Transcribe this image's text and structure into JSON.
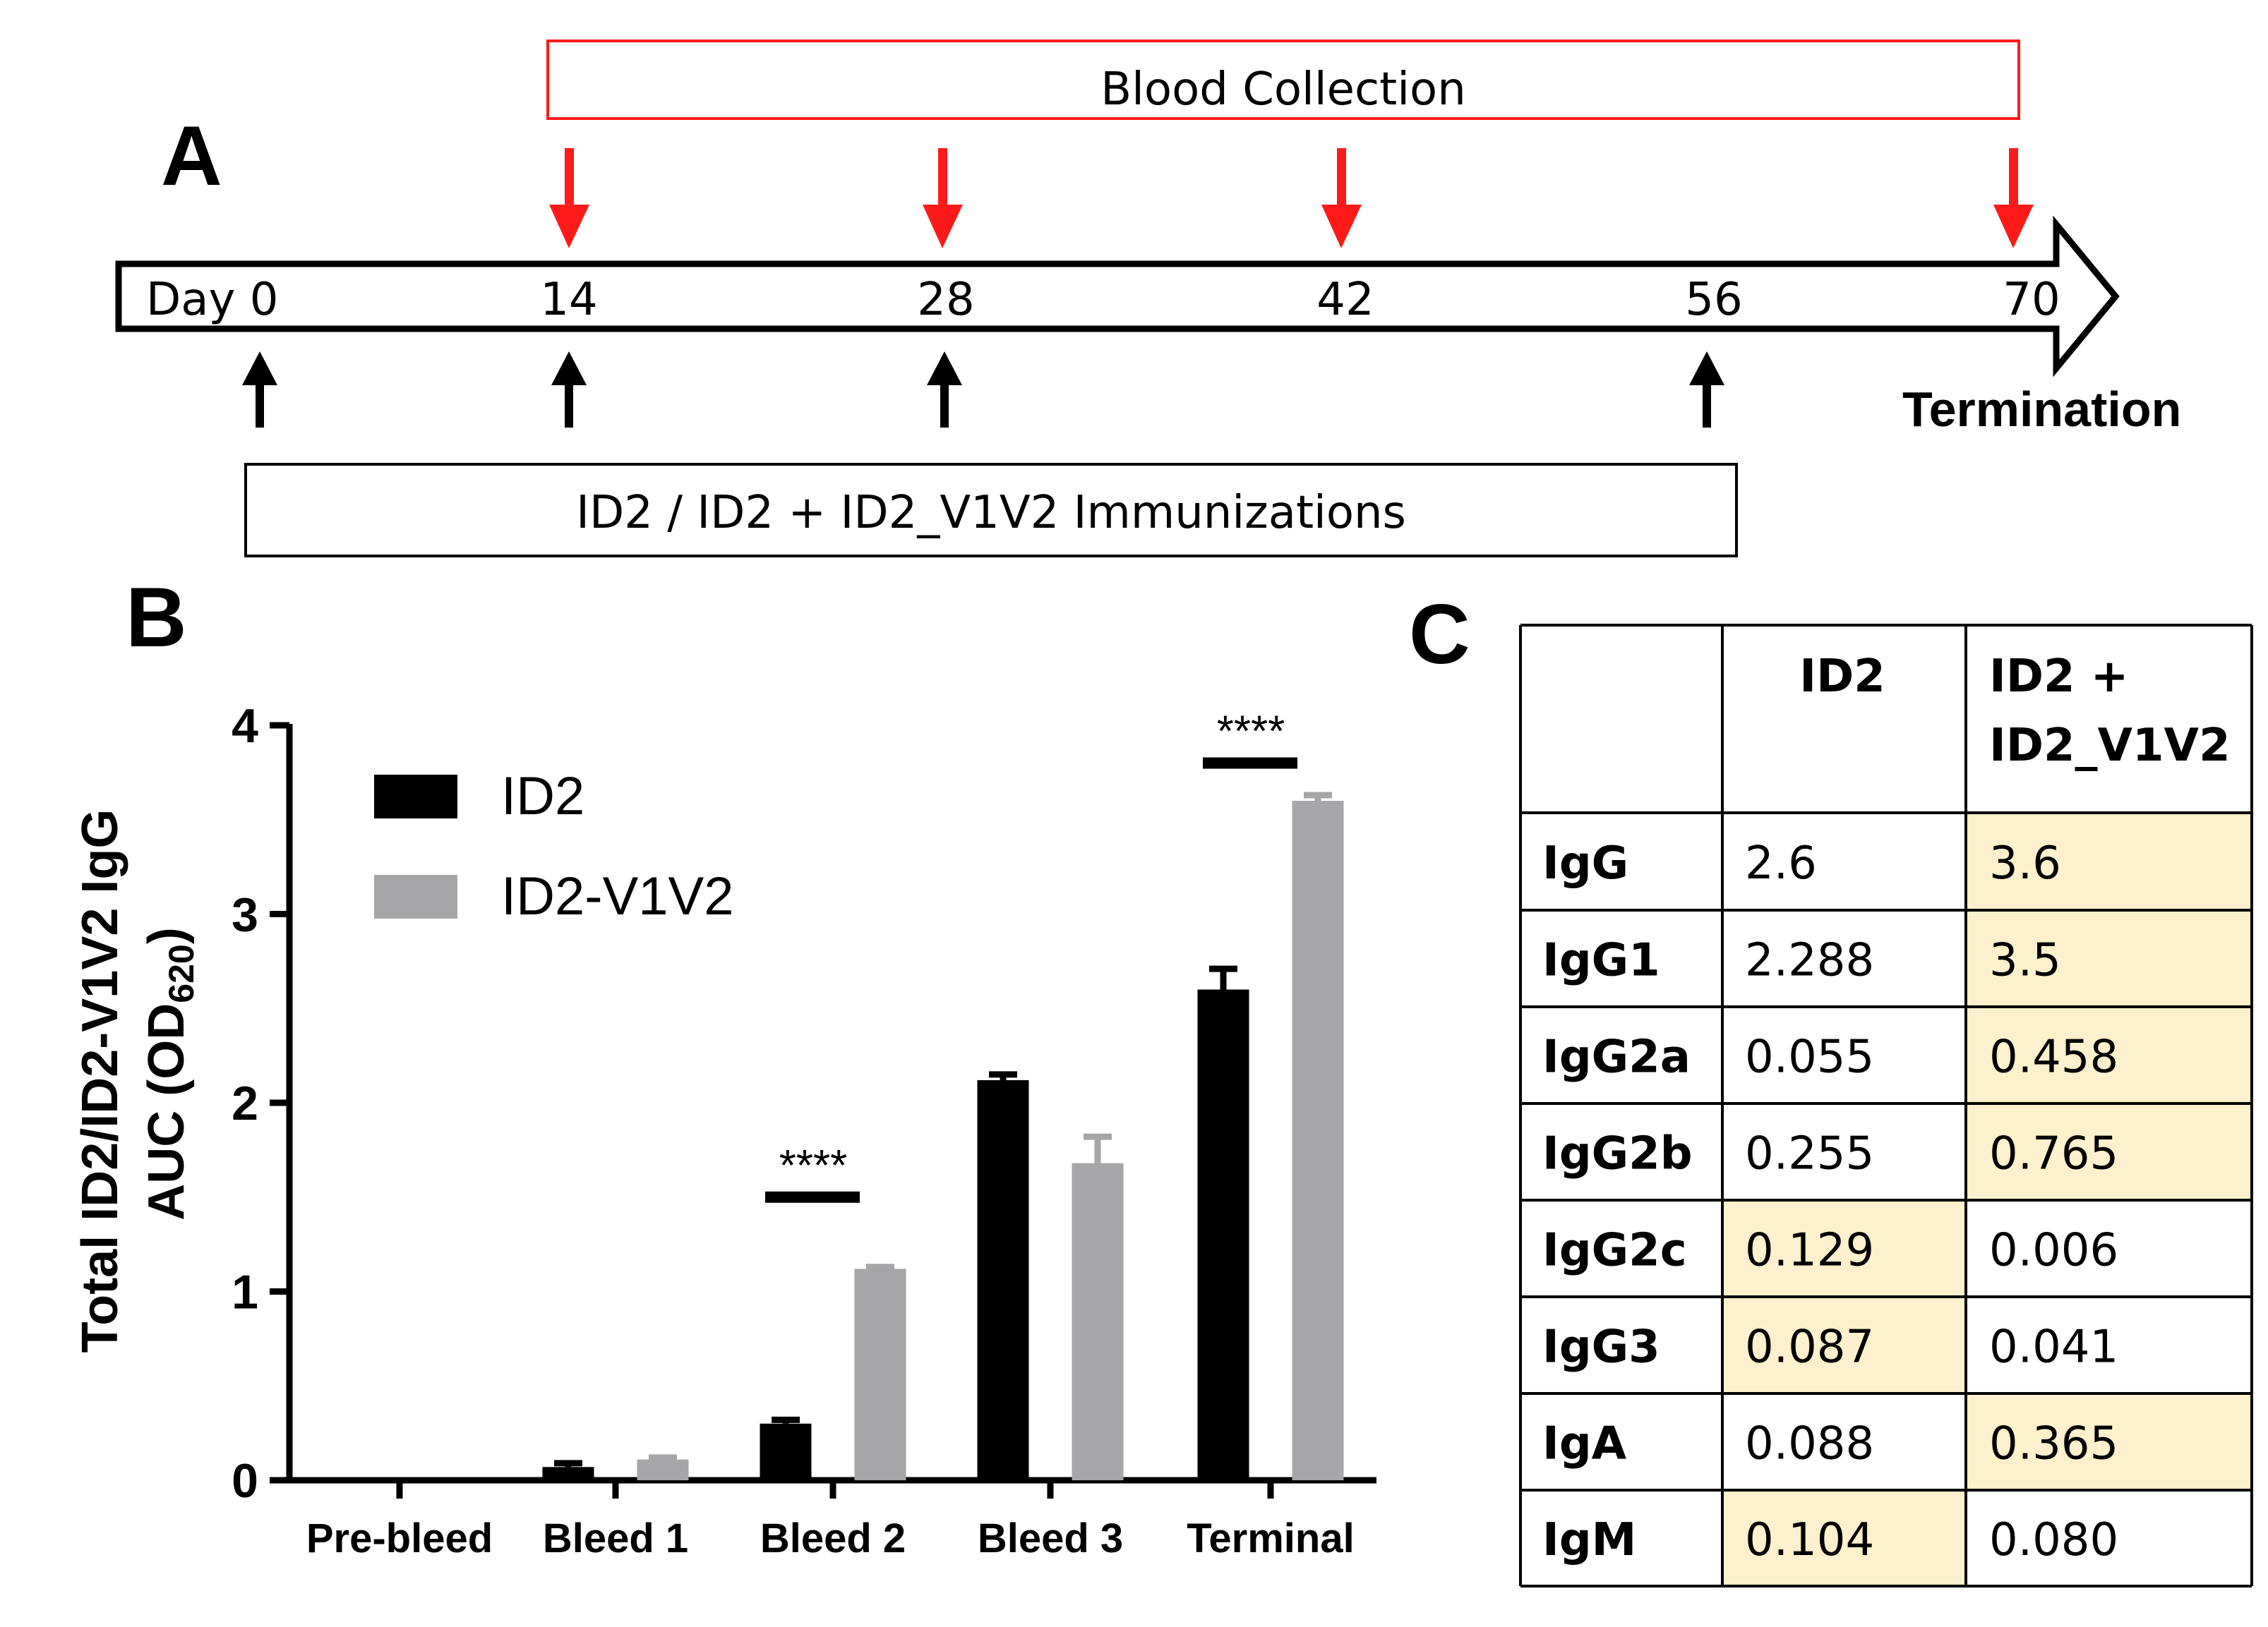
{
  "panelA": {
    "label": "A",
    "blood_collection": "Blood Collection",
    "immunizations": "ID2 / ID2 + ID2_V1V2 Immunizations",
    "termination": "Termination",
    "ticks": [
      "Day 0",
      "14",
      "28",
      "42",
      "56",
      "70"
    ],
    "blood_days": [
      "14",
      "28",
      "42",
      "70"
    ],
    "immunization_days": [
      "Day 0",
      "14",
      "28",
      "56"
    ]
  },
  "panelB": {
    "label": "B",
    "ylabel_line1": "Total ID2/ID2-V1V2 IgG",
    "ylabel_line2_prefix": "AUC (OD",
    "ylabel_line2_sub": "620",
    "ylabel_line2_suffix": ")",
    "colors": {
      "ID2": "#000000",
      "ID2-V1V2": "#a6a6a8"
    }
  },
  "panelC": {
    "label": "C",
    "col_headers": [
      "ID2",
      "ID2 +",
      "ID2_V1V2"
    ],
    "highlight_color": "#fdf0cc",
    "rows": [
      {
        "name": "IgG",
        "id2": "2.6",
        "combo": "3.6",
        "highlight": "combo"
      },
      {
        "name": "IgG1",
        "id2": "2.288",
        "combo": "3.5",
        "highlight": "combo"
      },
      {
        "name": "IgG2a",
        "id2": "0.055",
        "combo": "0.458",
        "highlight": "combo"
      },
      {
        "name": "IgG2b",
        "id2": "0.255",
        "combo": "0.765",
        "highlight": "combo"
      },
      {
        "name": "IgG2c",
        "id2": "0.129",
        "combo": "0.006",
        "highlight": "id2"
      },
      {
        "name": "IgG3",
        "id2": "0.087",
        "combo": "0.041",
        "highlight": "id2"
      },
      {
        "name": "IgA",
        "id2": "0.088",
        "combo": "0.365",
        "highlight": "combo"
      },
      {
        "name": "IgM",
        "id2": "0.104",
        "combo": "0.080",
        "highlight": "id2"
      }
    ]
  },
  "chart_data": {
    "type": "bar",
    "title": "",
    "xlabel": "",
    "ylabel": "Total ID2/ID2-V1V2 IgG AUC (OD620)",
    "categories": [
      "Pre-bleed",
      "Bleed 1",
      "Bleed 2",
      "Bleed 3",
      "Terminal"
    ],
    "series": [
      {
        "name": "ID2",
        "values": [
          0,
          0.07,
          0.3,
          2.12,
          2.6
        ],
        "errors": [
          0,
          0.02,
          0.02,
          0.03,
          0.11
        ]
      },
      {
        "name": "ID2-V1V2",
        "values": [
          0,
          0.11,
          1.12,
          1.68,
          3.6
        ],
        "errors": [
          0,
          0.01,
          0.01,
          0.14,
          0.03
        ]
      }
    ],
    "ylim": [
      0,
      4
    ],
    "yticks": [
      "0",
      "1",
      "2",
      "3",
      "4"
    ],
    "legend": "top-left",
    "significance": [
      {
        "category": "Bleed 2",
        "label": "****",
        "y": 1.5
      },
      {
        "category": "Terminal",
        "label": "****",
        "y": 3.8
      }
    ]
  }
}
